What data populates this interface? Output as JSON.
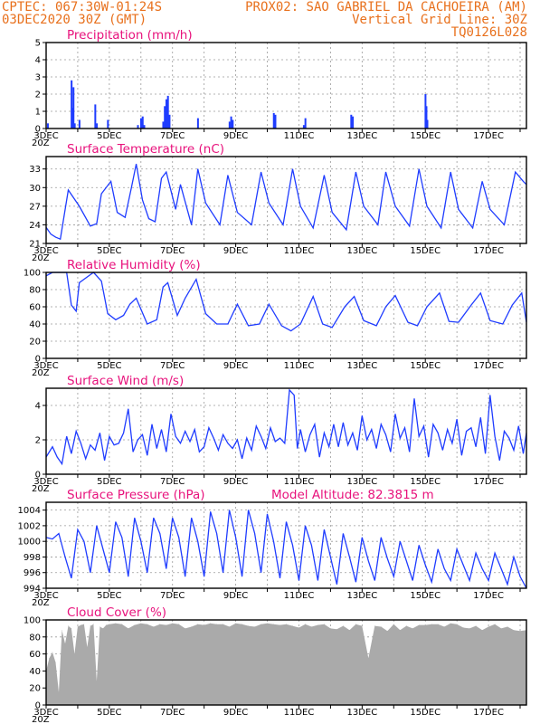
{
  "header": {
    "line1_left": "CPTEC:  067:30W-01:24S",
    "line1_right": "PROX02: SAO GABRIEL DA CACHOEIRA (AM)",
    "line2_left": "03DEC2020 30Z (GMT)",
    "line2_right": "Vertical Grid Line: 30Z",
    "line3_right": "TQ0126L028"
  },
  "colors": {
    "header": "#e8701c",
    "title": "#e8127c",
    "series": "#1f3cff",
    "cloud_fill": "#aaaaaa"
  },
  "x_axis": {
    "labels": [
      "3DEC",
      "5DEC",
      "7DEC",
      "9DEC",
      "11DEC",
      "13DEC",
      "15DEC",
      "17DEC"
    ],
    "label_days": [
      0,
      2,
      4,
      6,
      8,
      10,
      12,
      14
    ],
    "grid_days": [
      0,
      1,
      2,
      3,
      4,
      5,
      6,
      7,
      8,
      9,
      10,
      11,
      12,
      13,
      14,
      15
    ],
    "start_marker": "20Z",
    "range_days": [
      0,
      15.2
    ]
  },
  "chart_data": [
    {
      "type": "bar",
      "title": "Precipitation (mm/h)",
      "ylim": [
        0,
        5
      ],
      "yticks": [
        0,
        1,
        2,
        3,
        4,
        5
      ],
      "x": [
        0.05,
        0.8,
        0.83,
        0.86,
        0.9,
        1.05,
        1.55,
        1.6,
        1.95,
        2.9,
        3.0,
        3.05,
        3.1,
        3.7,
        3.75,
        3.78,
        3.8,
        3.82,
        3.85,
        3.9,
        4.8,
        5.8,
        5.85,
        5.9,
        7.2,
        7.25,
        8.15,
        8.2,
        9.65,
        9.7,
        12.0,
        12.03,
        12.06
      ],
      "values": [
        0.3,
        2.8,
        1.2,
        2.4,
        0.3,
        0.5,
        1.4,
        0.3,
        0.5,
        0.2,
        0.6,
        0.7,
        0.2,
        0.4,
        1.3,
        0.8,
        1.7,
        1.5,
        1.9,
        0.8,
        0.6,
        0.4,
        0.7,
        0.5,
        0.9,
        0.8,
        0.2,
        0.6,
        0.8,
        0.7,
        2.0,
        1.3,
        0.5
      ]
    },
    {
      "type": "line",
      "title": "Surface Temperature (nC)",
      "ylim": [
        21,
        35
      ],
      "yticks": [
        21,
        24,
        27,
        30,
        33
      ],
      "x": [
        0,
        0.15,
        0.3,
        0.45,
        0.7,
        1.05,
        1.4,
        1.6,
        1.75,
        2.05,
        2.25,
        2.5,
        2.7,
        2.85,
        3.05,
        3.25,
        3.45,
        3.65,
        3.8,
        4.1,
        4.25,
        4.6,
        4.8,
        5.05,
        5.5,
        5.75,
        6.05,
        6.5,
        6.8,
        7.05,
        7.5,
        7.8,
        8.05,
        8.45,
        8.8,
        9.05,
        9.5,
        9.8,
        10.05,
        10.5,
        10.75,
        11.05,
        11.5,
        11.8,
        12.05,
        12.5,
        12.8,
        13.05,
        13.5,
        13.8,
        14.05,
        14.5,
        14.85,
        15.1,
        15.2
      ],
      "values": [
        23.6,
        22.5,
        22.0,
        21.7,
        29.6,
        27.0,
        23.8,
        24.2,
        29.0,
        31.0,
        26.0,
        25.2,
        30.0,
        33.8,
        28.0,
        25.0,
        24.5,
        31.5,
        32.5,
        26.5,
        30.5,
        24.0,
        33.0,
        27.5,
        24.0,
        32.0,
        26.0,
        24.0,
        32.5,
        27.5,
        24.0,
        33.0,
        27.0,
        23.5,
        32.0,
        26.0,
        23.2,
        32.5,
        27.0,
        24.0,
        32.5,
        27.0,
        23.8,
        33.0,
        27.0,
        23.5,
        32.5,
        26.5,
        23.5,
        31.0,
        26.5,
        24.0,
        32.5,
        31.0,
        30.5
      ]
    },
    {
      "type": "line",
      "title": "Relative Humidity (%)",
      "ylim": [
        0,
        100
      ],
      "yticks": [
        0,
        20,
        40,
        60,
        80,
        100
      ],
      "x": [
        0,
        0.2,
        0.45,
        0.65,
        0.8,
        0.95,
        1.05,
        1.5,
        1.75,
        1.95,
        2.2,
        2.45,
        2.65,
        2.85,
        3.2,
        3.5,
        3.7,
        3.85,
        4.15,
        4.4,
        4.75,
        5.05,
        5.4,
        5.75,
        6.05,
        6.4,
        6.75,
        7.05,
        7.45,
        7.75,
        8.05,
        8.45,
        8.75,
        9.05,
        9.45,
        9.75,
        10.05,
        10.45,
        10.75,
        11.05,
        11.45,
        11.75,
        12.05,
        12.45,
        12.75,
        13.05,
        13.45,
        13.75,
        14.05,
        14.45,
        14.75,
        15.05,
        15.2
      ],
      "values": [
        96,
        100,
        100,
        100,
        62,
        55,
        88,
        100,
        90,
        52,
        45,
        50,
        63,
        70,
        40,
        45,
        83,
        88,
        50,
        70,
        92,
        52,
        40,
        40,
        63,
        38,
        40,
        63,
        38,
        32,
        40,
        72,
        40,
        36,
        60,
        72,
        44,
        38,
        60,
        73,
        42,
        38,
        60,
        76,
        43,
        42,
        62,
        76,
        44,
        40,
        62,
        76,
        42
      ]
    },
    {
      "type": "line",
      "title": "Surface Wind (m/s)",
      "ylim": [
        0,
        5
      ],
      "yticks": [
        0,
        2,
        4
      ],
      "x": [
        0,
        0.2,
        0.35,
        0.5,
        0.65,
        0.8,
        0.95,
        1.1,
        1.25,
        1.4,
        1.55,
        1.7,
        1.85,
        2.0,
        2.15,
        2.3,
        2.45,
        2.6,
        2.75,
        2.9,
        3.05,
        3.2,
        3.35,
        3.5,
        3.65,
        3.8,
        3.95,
        4.1,
        4.25,
        4.4,
        4.55,
        4.7,
        4.85,
        5.0,
        5.15,
        5.3,
        5.45,
        5.6,
        5.75,
        5.9,
        6.05,
        6.2,
        6.35,
        6.5,
        6.65,
        6.8,
        6.95,
        7.1,
        7.25,
        7.4,
        7.55,
        7.7,
        7.85,
        7.95,
        8.05,
        8.2,
        8.35,
        8.5,
        8.65,
        8.8,
        8.95,
        9.1,
        9.25,
        9.4,
        9.55,
        9.7,
        9.85,
        10.0,
        10.15,
        10.3,
        10.45,
        10.6,
        10.75,
        10.9,
        11.05,
        11.2,
        11.35,
        11.5,
        11.65,
        11.8,
        11.95,
        12.1,
        12.25,
        12.4,
        12.55,
        12.7,
        12.85,
        13.0,
        13.15,
        13.3,
        13.45,
        13.6,
        13.75,
        13.9,
        14.05,
        14.2,
        14.35,
        14.5,
        14.65,
        14.8,
        14.95,
        15.1,
        15.2
      ],
      "values": [
        1.0,
        1.6,
        1.0,
        0.6,
        2.2,
        1.2,
        2.5,
        1.8,
        0.9,
        1.7,
        1.4,
        2.4,
        0.8,
        2.2,
        1.7,
        1.8,
        2.4,
        3.8,
        1.3,
        2.0,
        2.3,
        1.1,
        2.9,
        1.5,
        2.6,
        1.3,
        3.5,
        2.2,
        1.8,
        2.5,
        1.9,
        2.6,
        1.3,
        1.6,
        2.7,
        2.1,
        1.4,
        2.3,
        1.8,
        1.5,
        2.0,
        0.9,
        2.1,
        1.4,
        2.8,
        2.2,
        1.5,
        2.7,
        1.9,
        2.1,
        1.8,
        4.9,
        4.6,
        1.5,
        2.6,
        1.3,
        2.3,
        2.9,
        1.0,
        2.4,
        1.6,
        2.9,
        1.6,
        3.0,
        1.7,
        2.4,
        1.4,
        3.4,
        2.0,
        2.6,
        1.5,
        2.9,
        2.3,
        1.3,
        3.5,
        2.1,
        2.7,
        1.3,
        4.4,
        2.2,
        2.8,
        1.0,
        2.9,
        2.4,
        1.4,
        2.6,
        1.8,
        3.2,
        1.1,
        2.5,
        2.7,
        1.6,
        3.3,
        1.2,
        4.6,
        2.2,
        0.8,
        2.5,
        2.1,
        1.4,
        2.8,
        1.2,
        2.4
      ]
    },
    {
      "type": "line",
      "title": "Surface Pressure (hPa)",
      "annotation": "Model Altitude: 82.3815  m",
      "ylim": [
        994,
        1005
      ],
      "yticks": [
        994,
        996,
        998,
        1000,
        1002,
        1004
      ],
      "x": [
        0,
        0.2,
        0.4,
        0.6,
        0.8,
        1.0,
        1.2,
        1.4,
        1.6,
        1.8,
        2.0,
        2.2,
        2.4,
        2.6,
        2.8,
        3.0,
        3.2,
        3.4,
        3.6,
        3.8,
        4.0,
        4.2,
        4.4,
        4.6,
        4.8,
        5.0,
        5.2,
        5.4,
        5.6,
        5.8,
        6.0,
        6.2,
        6.4,
        6.6,
        6.8,
        7.0,
        7.2,
        7.4,
        7.6,
        7.8,
        8.0,
        8.2,
        8.4,
        8.6,
        8.8,
        9.0,
        9.2,
        9.4,
        9.6,
        9.8,
        10.0,
        10.2,
        10.4,
        10.6,
        10.8,
        11.0,
        11.2,
        11.4,
        11.6,
        11.8,
        12.0,
        12.2,
        12.4,
        12.6,
        12.8,
        13.0,
        13.2,
        13.4,
        13.6,
        13.8,
        14.0,
        14.2,
        14.4,
        14.6,
        14.8,
        15.0,
        15.2
      ],
      "values": [
        1000.5,
        1000.3,
        1001.0,
        998.0,
        995.3,
        1001.5,
        1000.0,
        996.0,
        1002.0,
        999.0,
        996.0,
        1002.5,
        1000.5,
        995.5,
        1003.0,
        1000.0,
        996.0,
        1003.0,
        1001.0,
        996.5,
        1003.0,
        1000.5,
        995.5,
        1003.0,
        1000.0,
        995.5,
        1003.8,
        1001.0,
        996.0,
        1004.0,
        1000.5,
        995.5,
        1004.0,
        1001.0,
        996.0,
        1003.5,
        1000.0,
        995.3,
        1002.5,
        999.5,
        995.0,
        1002.0,
        999.5,
        995.0,
        1001.5,
        998.0,
        994.5,
        1001.0,
        998.0,
        994.8,
        1000.5,
        997.5,
        995.0,
        1000.5,
        997.8,
        995.5,
        1000.0,
        997.5,
        995.0,
        999.5,
        997.0,
        994.8,
        999.0,
        996.5,
        995.0,
        999.0,
        997.0,
        995.0,
        998.5,
        996.5,
        995.0,
        998.5,
        996.5,
        994.5,
        998.0,
        995.5,
        994.0
      ]
    },
    {
      "type": "area",
      "title": "Cloud Cover (%)",
      "ylim": [
        0,
        100
      ],
      "yticks": [
        0,
        20,
        40,
        60,
        80,
        100
      ],
      "x": [
        0,
        0.1,
        0.2,
        0.3,
        0.4,
        0.5,
        0.6,
        0.7,
        0.8,
        0.9,
        1.0,
        1.1,
        1.2,
        1.3,
        1.4,
        1.5,
        1.6,
        1.7,
        1.8,
        1.9,
        2.0,
        2.2,
        2.4,
        2.6,
        2.8,
        3.0,
        3.2,
        3.4,
        3.6,
        3.8,
        4.0,
        4.2,
        4.4,
        4.6,
        4.8,
        5.0,
        5.2,
        5.4,
        5.6,
        5.8,
        6.0,
        6.2,
        6.4,
        6.6,
        6.8,
        7.0,
        7.2,
        7.4,
        7.6,
        7.8,
        8.0,
        8.2,
        8.4,
        8.6,
        8.8,
        9.0,
        9.2,
        9.4,
        9.6,
        9.8,
        10.0,
        10.2,
        10.4,
        10.6,
        10.8,
        11.0,
        11.2,
        11.4,
        11.6,
        11.8,
        12.0,
        12.2,
        12.4,
        12.6,
        12.8,
        13.0,
        13.2,
        13.4,
        13.6,
        13.8,
        14.0,
        14.2,
        14.4,
        14.6,
        14.8,
        15.0,
        15.2
      ],
      "values": [
        40,
        55,
        62,
        50,
        15,
        88,
        72,
        93,
        90,
        60,
        92,
        94,
        95,
        68,
        93,
        95,
        28,
        92,
        90,
        94,
        95,
        96,
        95,
        90,
        94,
        96,
        95,
        92,
        95,
        94,
        96,
        95,
        90,
        92,
        95,
        94,
        96,
        95,
        95,
        92,
        96,
        95,
        93,
        92,
        95,
        96,
        95,
        94,
        95,
        93,
        91,
        95,
        92,
        94,
        95,
        90,
        89,
        93,
        88,
        95,
        93,
        55,
        93,
        92,
        87,
        95,
        88,
        93,
        90,
        94,
        94,
        95,
        95,
        92,
        96,
        95,
        91,
        90,
        93,
        88,
        92,
        95,
        90,
        92,
        88,
        87,
        88
      ]
    }
  ]
}
